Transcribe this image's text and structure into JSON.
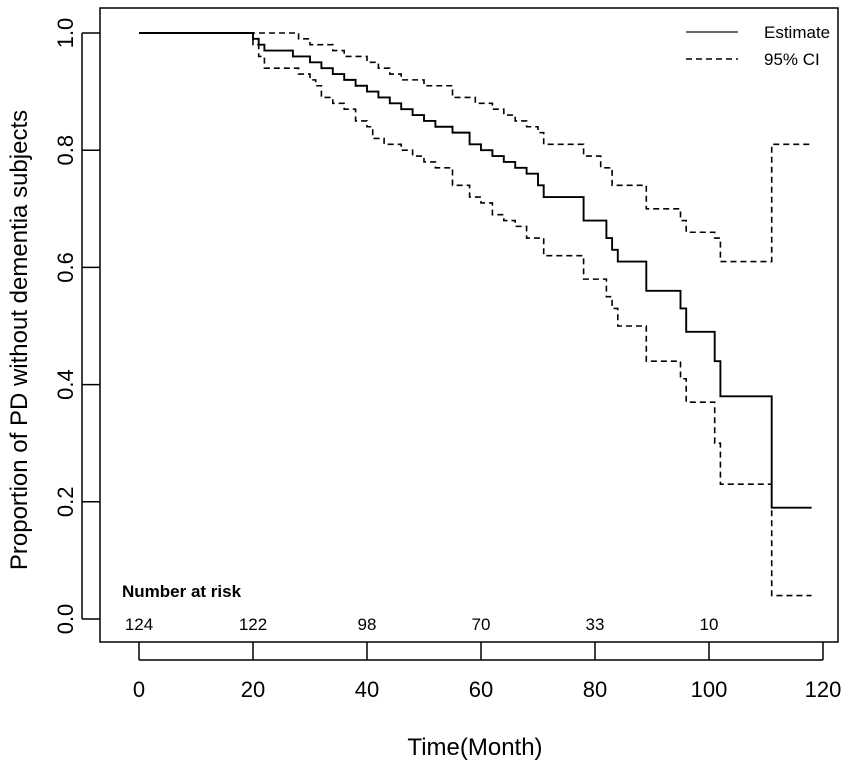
{
  "chart_data": {
    "type": "line",
    "xlabel": "Time(Month)",
    "ylabel": "Proportion of PD without dementia subjects",
    "xlim": [
      0,
      120
    ],
    "ylim": [
      0,
      1
    ],
    "x_ticks": [
      0,
      20,
      40,
      60,
      80,
      100,
      120
    ],
    "y_ticks": [
      0.0,
      0.2,
      0.4,
      0.6,
      0.8,
      1.0
    ],
    "x_tick_labels": [
      "0",
      "20",
      "40",
      "60",
      "80",
      "100",
      "120"
    ],
    "y_tick_labels": [
      "0.0",
      "0.2",
      "0.4",
      "0.6",
      "0.8",
      "1.0"
    ],
    "grid": false,
    "legend_position": "top-right",
    "legend": [
      {
        "label": "Estimate",
        "style": "solid"
      },
      {
        "label": "95% CI",
        "style": "dashed"
      }
    ],
    "series": [
      {
        "name": "Estimate",
        "style": "solid",
        "step": true,
        "points": [
          [
            0,
            1.0
          ],
          [
            19,
            1.0
          ],
          [
            20,
            0.99
          ],
          [
            21,
            0.98
          ],
          [
            22,
            0.97
          ],
          [
            27,
            0.96
          ],
          [
            30,
            0.95
          ],
          [
            32,
            0.94
          ],
          [
            34,
            0.93
          ],
          [
            36,
            0.92
          ],
          [
            38,
            0.91
          ],
          [
            40,
            0.9
          ],
          [
            42,
            0.89
          ],
          [
            44,
            0.88
          ],
          [
            46,
            0.87
          ],
          [
            48,
            0.86
          ],
          [
            50,
            0.85
          ],
          [
            52,
            0.84
          ],
          [
            55,
            0.83
          ],
          [
            58,
            0.81
          ],
          [
            60,
            0.8
          ],
          [
            62,
            0.79
          ],
          [
            64,
            0.78
          ],
          [
            66,
            0.77
          ],
          [
            68,
            0.76
          ],
          [
            70,
            0.74
          ],
          [
            71,
            0.72
          ],
          [
            78,
            0.68
          ],
          [
            82,
            0.65
          ],
          [
            83,
            0.63
          ],
          [
            84,
            0.61
          ],
          [
            89,
            0.56
          ],
          [
            95,
            0.53
          ],
          [
            96,
            0.49
          ],
          [
            101,
            0.44
          ],
          [
            102,
            0.38
          ],
          [
            111,
            0.19
          ],
          [
            118,
            0.19
          ]
        ]
      },
      {
        "name": "95% CI",
        "style": "dashed",
        "step": true,
        "points": [
          [
            0,
            1.0
          ],
          [
            26,
            1.0
          ],
          [
            28,
            0.99
          ],
          [
            30,
            0.98
          ],
          [
            34,
            0.97
          ],
          [
            36,
            0.96
          ],
          [
            40,
            0.95
          ],
          [
            42,
            0.94
          ],
          [
            44,
            0.93
          ],
          [
            46,
            0.92
          ],
          [
            50,
            0.91
          ],
          [
            55,
            0.89
          ],
          [
            59,
            0.88
          ],
          [
            62,
            0.87
          ],
          [
            64,
            0.86
          ],
          [
            66,
            0.85
          ],
          [
            68,
            0.84
          ],
          [
            70,
            0.83
          ],
          [
            71,
            0.81
          ],
          [
            78,
            0.79
          ],
          [
            81,
            0.77
          ],
          [
            83,
            0.74
          ],
          [
            89,
            0.7
          ],
          [
            95,
            0.68
          ],
          [
            96,
            0.66
          ],
          [
            101,
            0.65
          ],
          [
            102,
            0.61
          ],
          [
            111,
            0.81
          ],
          [
            118,
            0.81
          ]
        ]
      },
      {
        "name": "95% CI",
        "style": "dashed",
        "step": true,
        "points": [
          [
            0,
            1.0
          ],
          [
            19,
            1.0
          ],
          [
            20,
            0.98
          ],
          [
            21,
            0.96
          ],
          [
            22,
            0.94
          ],
          [
            28,
            0.93
          ],
          [
            30,
            0.92
          ],
          [
            31,
            0.91
          ],
          [
            32,
            0.89
          ],
          [
            34,
            0.88
          ],
          [
            36,
            0.87
          ],
          [
            38,
            0.85
          ],
          [
            40,
            0.84
          ],
          [
            41,
            0.82
          ],
          [
            43,
            0.81
          ],
          [
            46,
            0.8
          ],
          [
            48,
            0.79
          ],
          [
            50,
            0.78
          ],
          [
            52,
            0.77
          ],
          [
            55,
            0.74
          ],
          [
            58,
            0.72
          ],
          [
            60,
            0.71
          ],
          [
            62,
            0.69
          ],
          [
            64,
            0.68
          ],
          [
            66,
            0.67
          ],
          [
            68,
            0.65
          ],
          [
            71,
            0.62
          ],
          [
            78,
            0.58
          ],
          [
            82,
            0.55
          ],
          [
            83,
            0.53
          ],
          [
            84,
            0.5
          ],
          [
            89,
            0.44
          ],
          [
            95,
            0.41
          ],
          [
            96,
            0.37
          ],
          [
            101,
            0.3
          ],
          [
            102,
            0.23
          ],
          [
            111,
            0.04
          ],
          [
            118,
            0.04
          ]
        ]
      }
    ],
    "number_at_risk": {
      "title": "Number at risk",
      "times": [
        0,
        20,
        40,
        60,
        80,
        100
      ],
      "labels": [
        "124",
        "122",
        "98",
        "70",
        "33",
        "10"
      ]
    }
  }
}
